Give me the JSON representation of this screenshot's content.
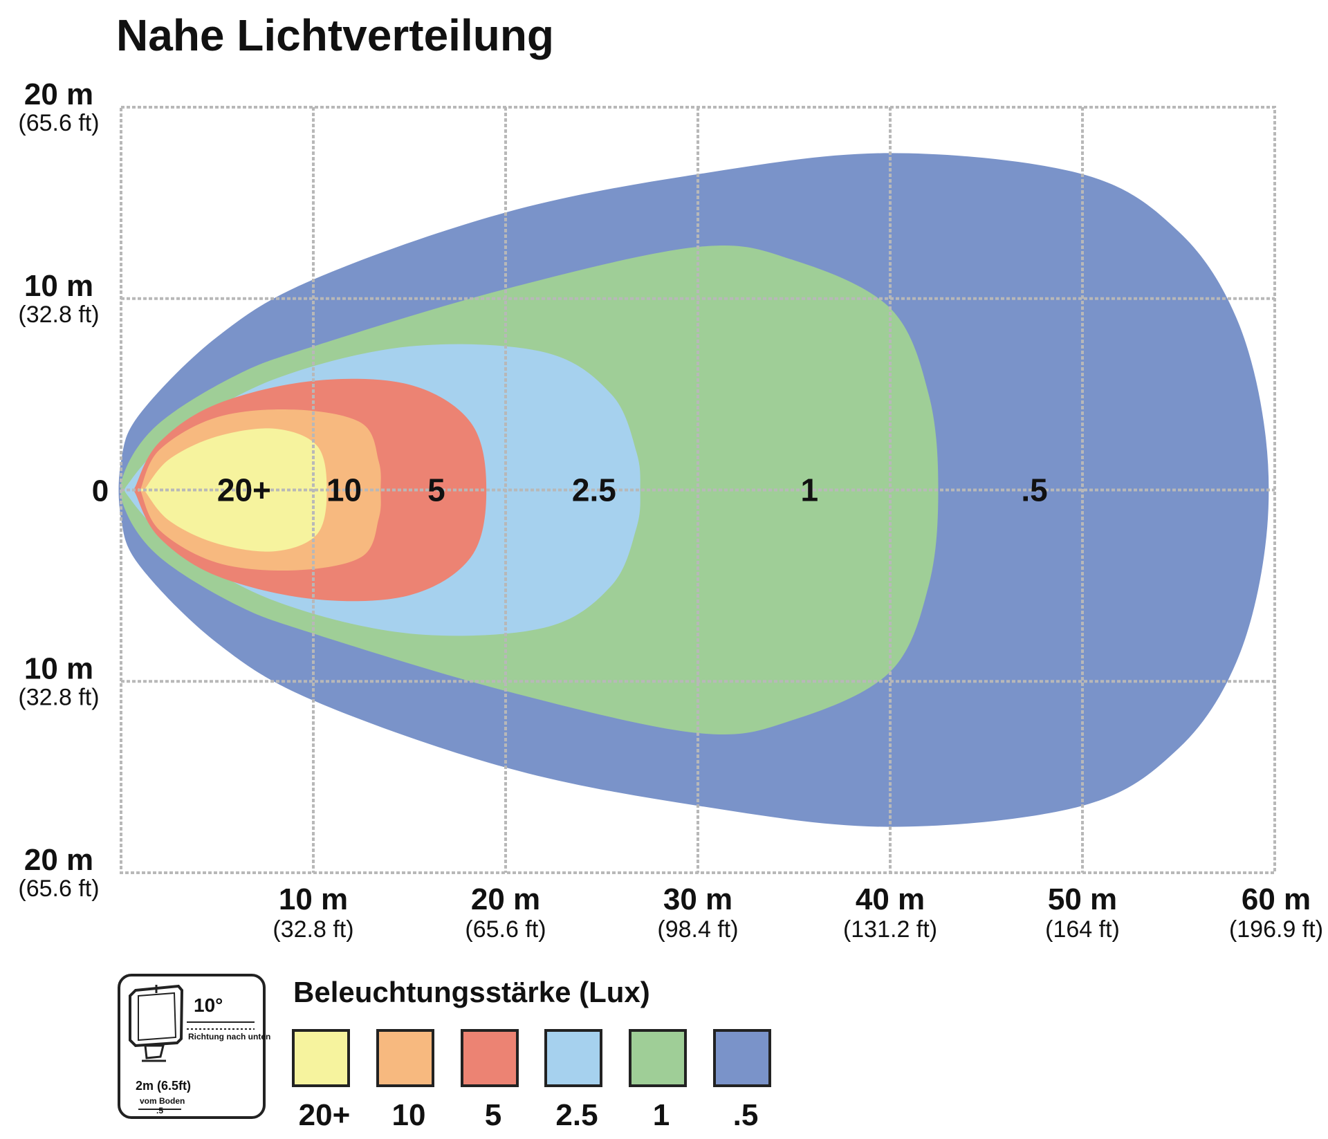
{
  "chart_data": {
    "type": "area",
    "title": "Nahe Lichtverteilung",
    "x_ticks": [
      {
        "value": 10,
        "label": "10 m",
        "sub": "(32.8 ft)"
      },
      {
        "value": 20,
        "label": "20 m",
        "sub": "(65.6 ft)"
      },
      {
        "value": 30,
        "label": "30 m",
        "sub": "(98.4 ft)"
      },
      {
        "value": 40,
        "label": "40 m",
        "sub": "(131.2 ft)"
      },
      {
        "value": 50,
        "label": "50 m",
        "sub": "(164 ft)"
      },
      {
        "value": 60,
        "label": "60 m",
        "sub": "(196.9 ft)"
      }
    ],
    "y_ticks": [
      {
        "value": 20,
        "label": "20 m",
        "sub": "(65.6 ft)"
      },
      {
        "value": 10,
        "label": "10 m",
        "sub": "(32.8 ft)"
      },
      {
        "value": 0,
        "label": "0",
        "sub": ""
      },
      {
        "value": -10,
        "label": "10 m",
        "sub": "(32.8 ft)"
      },
      {
        "value": -20,
        "label": "20 m",
        "sub": "(65.6 ft)"
      }
    ],
    "xlim": [
      0,
      60
    ],
    "ylim": [
      -20,
      20
    ],
    "grid": true,
    "series": [
      {
        "lux": ".5",
        "color": "#7a93c9",
        "label_x": 47.5,
        "outline": [
          [
            0,
            -1.5
          ],
          [
            1,
            -4
          ],
          [
            5,
            -8
          ],
          [
            10,
            -11
          ],
          [
            20,
            -14.5
          ],
          [
            30,
            -16.5
          ],
          [
            40,
            -17.6
          ],
          [
            50,
            -16.5
          ],
          [
            55,
            -13.5
          ],
          [
            58,
            -9
          ],
          [
            59.5,
            -3
          ],
          [
            59.5,
            3
          ],
          [
            58,
            9
          ],
          [
            55,
            13.5
          ],
          [
            50,
            16.5
          ],
          [
            40,
            17.6
          ],
          [
            30,
            16.5
          ],
          [
            20,
            14.5
          ],
          [
            10,
            11
          ],
          [
            5,
            8
          ],
          [
            1,
            4
          ],
          [
            0,
            1.5
          ]
        ]
      },
      {
        "lux": "1",
        "color": "#9fce97",
        "label_x": 35.8,
        "outline": [
          [
            0.2,
            -1
          ],
          [
            2,
            -3.5
          ],
          [
            6,
            -6
          ],
          [
            10,
            -7.5
          ],
          [
            20,
            -10.5
          ],
          [
            30,
            -12.7
          ],
          [
            35,
            -12
          ],
          [
            40,
            -9.5
          ],
          [
            42,
            -5
          ],
          [
            42.5,
            0
          ],
          [
            42,
            5
          ],
          [
            40,
            9.5
          ],
          [
            35,
            12
          ],
          [
            30,
            12.7
          ],
          [
            20,
            10.5
          ],
          [
            10,
            7.5
          ],
          [
            6,
            6
          ],
          [
            2,
            3.5
          ],
          [
            0.2,
            1
          ]
        ]
      },
      {
        "lux": "2.5",
        "color": "#a6d1ee",
        "label_x": 24.6,
        "outline": [
          [
            0.5,
            -0.5
          ],
          [
            3,
            -3
          ],
          [
            8,
            -5.8
          ],
          [
            15,
            -7.5
          ],
          [
            22,
            -7.2
          ],
          [
            25.5,
            -5
          ],
          [
            26.8,
            -2
          ],
          [
            27,
            0
          ],
          [
            26.8,
            2
          ],
          [
            25.5,
            5
          ],
          [
            22,
            7.2
          ],
          [
            15,
            7.5
          ],
          [
            8,
            5.8
          ],
          [
            3,
            3
          ],
          [
            0.5,
            0.5
          ]
        ]
      },
      {
        "lux": "5",
        "color": "#ec8373",
        "label_x": 16.4,
        "outline": [
          [
            0.8,
            -0.3
          ],
          [
            2,
            -2.5
          ],
          [
            5,
            -4.5
          ],
          [
            10,
            -5.7
          ],
          [
            15,
            -5.5
          ],
          [
            18.2,
            -3.5
          ],
          [
            19,
            0
          ],
          [
            18.2,
            3.5
          ],
          [
            15,
            5.5
          ],
          [
            10,
            5.7
          ],
          [
            5,
            4.5
          ],
          [
            2,
            2.5
          ],
          [
            0.8,
            0.3
          ]
        ]
      },
      {
        "lux": "10",
        "color": "#f7b97f",
        "label_x": 11.6,
        "outline": [
          [
            1,
            0
          ],
          [
            2,
            -2.1
          ],
          [
            5,
            -3.8
          ],
          [
            9,
            -4.2
          ],
          [
            12.5,
            -3.5
          ],
          [
            13.4,
            -1.5
          ],
          [
            13.5,
            0
          ],
          [
            13.4,
            1.5
          ],
          [
            12.5,
            3.5
          ],
          [
            9,
            4.2
          ],
          [
            5,
            3.8
          ],
          [
            2,
            2.1
          ],
          [
            1,
            0
          ]
        ]
      },
      {
        "lux": "20+",
        "color": "#f6f39e",
        "label_x": 6.4,
        "outline": [
          [
            1.2,
            0
          ],
          [
            2.5,
            -1.6
          ],
          [
            5,
            -2.8
          ],
          [
            8,
            -3.2
          ],
          [
            10.2,
            -2.3
          ],
          [
            10.7,
            0
          ],
          [
            10.2,
            2.3
          ],
          [
            8,
            3.2
          ],
          [
            5,
            2.8
          ],
          [
            2.5,
            1.6
          ],
          [
            1.2,
            0
          ]
        ]
      }
    ],
    "legend": {
      "title": "Beleuchtungsstärke (Lux)",
      "items": [
        {
          "label": "20+",
          "color": "#f6f39e"
        },
        {
          "label": "10",
          "color": "#f7b97f"
        },
        {
          "label": "5",
          "color": "#ec8373"
        },
        {
          "label": "2.5",
          "color": "#a6d1ee"
        },
        {
          "label": "1",
          "color": "#9fce97"
        },
        {
          "label": ".5",
          "color": "#7a93c9"
        }
      ]
    },
    "mount_info": {
      "angle": "10°",
      "direction": "Richtung nach unten",
      "height": "2m (6.5ft)",
      "height_ref": "vom Boden",
      "marker": ".5"
    }
  }
}
